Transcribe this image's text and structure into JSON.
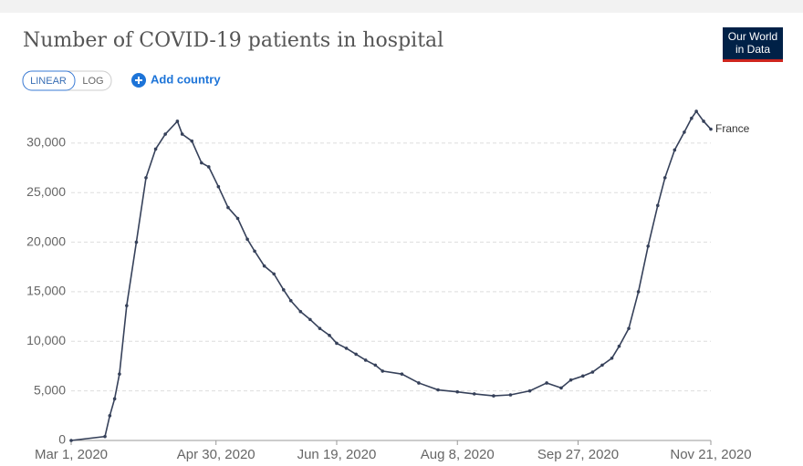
{
  "ui": {
    "scale_buttons": [
      "LINEAR",
      "LOG"
    ],
    "add_country": "Add country",
    "logo": [
      "Our World",
      "in Data"
    ]
  },
  "chart_data": {
    "type": "line",
    "title": "Number of COVID-19 patients in hospital",
    "x": [
      "2020-03-01",
      "2020-03-15",
      "2020-03-17",
      "2020-03-19",
      "2020-03-21",
      "2020-03-24",
      "2020-03-28",
      "2020-04-01",
      "2020-04-05",
      "2020-04-09",
      "2020-04-14",
      "2020-04-16",
      "2020-04-20",
      "2020-04-24",
      "2020-04-27",
      "2020-05-01",
      "2020-05-05",
      "2020-05-09",
      "2020-05-13",
      "2020-05-16",
      "2020-05-20",
      "2020-05-24",
      "2020-05-28",
      "2020-05-31",
      "2020-06-04",
      "2020-06-08",
      "2020-06-12",
      "2020-06-16",
      "2020-06-19",
      "2020-06-23",
      "2020-06-27",
      "2020-07-01",
      "2020-07-05",
      "2020-07-08",
      "2020-07-16",
      "2020-07-23",
      "2020-07-31",
      "2020-08-08",
      "2020-08-15",
      "2020-08-23",
      "2020-08-30",
      "2020-09-07",
      "2020-09-14",
      "2020-09-20",
      "2020-09-24",
      "2020-09-29",
      "2020-10-03",
      "2020-10-07",
      "2020-10-11",
      "2020-10-14",
      "2020-10-18",
      "2020-10-22",
      "2020-10-26",
      "2020-10-30",
      "2020-11-02",
      "2020-11-06",
      "2020-11-10",
      "2020-11-13",
      "2020-11-15",
      "2020-11-18",
      "2020-11-21"
    ],
    "series": [
      {
        "name": "France",
        "color": "#36415a",
        "values": [
          0,
          400,
          2500,
          4200,
          6700,
          13600,
          20000,
          26500,
          29400,
          30900,
          32200,
          30900,
          30200,
          28000,
          27600,
          25600,
          23500,
          22400,
          20300,
          19100,
          17600,
          16800,
          15200,
          14100,
          13000,
          12200,
          11300,
          10600,
          9800,
          9300,
          8700,
          8100,
          7600,
          7000,
          6700,
          5800,
          5100,
          4900,
          4700,
          4500,
          4600,
          5000,
          5800,
          5300,
          6100,
          6500,
          6900,
          7600,
          8300,
          9500,
          11300,
          15000,
          19600,
          23700,
          26500,
          29300,
          31100,
          32500,
          33200,
          32200,
          31400
        ]
      }
    ],
    "xlim": [
      "2020-03-01",
      "2020-11-21"
    ],
    "xticks": [
      {
        "value": "2020-03-01",
        "label": "Mar 1, 2020"
      },
      {
        "value": "2020-04-30",
        "label": "Apr 30, 2020"
      },
      {
        "value": "2020-06-19",
        "label": "Jun 19, 2020"
      },
      {
        "value": "2020-08-08",
        "label": "Aug 8, 2020"
      },
      {
        "value": "2020-09-27",
        "label": "Sep 27, 2020"
      },
      {
        "value": "2020-11-21",
        "label": "Nov 21, 2020"
      }
    ],
    "ylim": [
      0,
      33300
    ],
    "yticks": [
      0,
      {
        "value": 5000,
        "label": "5,000"
      },
      {
        "value": 10000,
        "label": "10,000"
      },
      {
        "value": 15000,
        "label": "15,000"
      },
      {
        "value": 20000,
        "label": "20,000"
      },
      {
        "value": 25000,
        "label": "25,000"
      },
      {
        "value": 30000,
        "label": "30,000"
      }
    ],
    "grid": true
  }
}
